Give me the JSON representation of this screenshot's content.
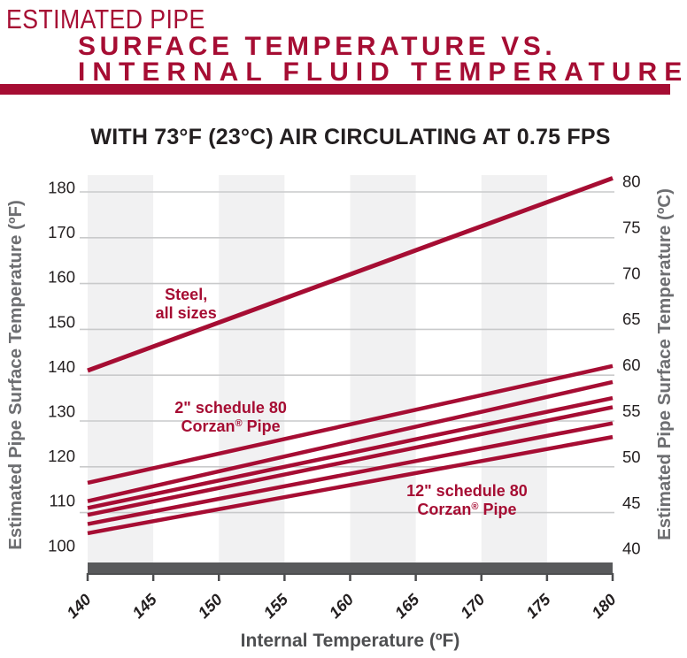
{
  "title": {
    "line1": "ESTIMATED PIPE",
    "line2": "SURFACE TEMPERATURE VS.",
    "line3": "INTERNAL FLUID TEMPERATURE"
  },
  "subtitle": "WITH 73°F (23°C) AIR CIRCULATING AT 0.75 FPS",
  "colors": {
    "crimson": "#A60D33",
    "dark_bar": "#58595B",
    "stripe": "#F1F1F2",
    "gridline": "#C9CACB",
    "text_dark": "#231F20",
    "tick_text": "#231F20",
    "axis_title_gray": "#6D6E71",
    "x_title_gray": "#4E4F51",
    "tick_mark": "#4D4E50"
  },
  "chart_data": {
    "type": "line",
    "title": "WITH 73°F (23°C) AIR CIRCULATING AT 0.75 FPS",
    "xlabel": "Internal Temperature (ºF)",
    "ylabel_left": "Estimated Pipe Surface Temperature (ºF)",
    "ylabel_right": "Estimated Pipe Surface Temperature (ºC)",
    "x_range": [
      140,
      180
    ],
    "y_range_left_f": [
      100,
      180
    ],
    "y_range_right_c": [
      40,
      80
    ],
    "x_ticks": [
      140,
      145,
      150,
      155,
      160,
      165,
      170,
      175,
      180
    ],
    "y_ticks_left_f": [
      180,
      170,
      160,
      150,
      140,
      130,
      120,
      110,
      100
    ],
    "y_ticks_right_c": [
      80,
      75,
      70,
      65,
      60,
      55,
      50,
      45,
      40
    ],
    "grid": "horizontal-only",
    "legend": "none",
    "background_stripes_x_f": [
      [
        140,
        145
      ],
      [
        150,
        155
      ],
      [
        160,
        165
      ],
      [
        170,
        175
      ]
    ],
    "series": [
      {
        "id": "steel",
        "label": "Steel, all sizes",
        "x": [
          140,
          180
        ],
        "surface_temp_f": [
          141.0,
          183.0
        ]
      },
      {
        "id": "corzan-2in-sch80",
        "label": "2\" schedule 80 Corzan® Pipe",
        "x": [
          140,
          180
        ],
        "surface_temp_f": [
          116.5,
          142.0
        ]
      },
      {
        "id": "corzan-unlabeled-1",
        "label": null,
        "x": [
          140,
          180
        ],
        "surface_temp_f": [
          112.5,
          138.5
        ]
      },
      {
        "id": "corzan-unlabeled-2",
        "label": null,
        "x": [
          140,
          180
        ],
        "surface_temp_f": [
          111.0,
          135.0
        ]
      },
      {
        "id": "corzan-unlabeled-3",
        "label": null,
        "x": [
          140,
          180
        ],
        "surface_temp_f": [
          109.5,
          133.0
        ]
      },
      {
        "id": "corzan-unlabeled-4",
        "label": null,
        "x": [
          140,
          180
        ],
        "surface_temp_f": [
          107.5,
          129.5
        ]
      },
      {
        "id": "corzan-12in-sch80",
        "label": "12\" schedule 80 Corzan® Pipe",
        "x": [
          140,
          180
        ],
        "surface_temp_f": [
          105.5,
          126.5
        ]
      }
    ],
    "annotations": [
      {
        "series": "steel",
        "lines": [
          "Steel,",
          "all sizes"
        ],
        "x_f": 147.5,
        "y_f": 155.7
      },
      {
        "series": "corzan-2in-sch80",
        "lines": [
          "2\" schedule 80",
          "Corzan® Pipe"
        ],
        "x_f": 150.9,
        "y_f": 131.0
      },
      {
        "series": "corzan-12in-sch80",
        "lines": [
          "12\" schedule 80",
          "Corzan® Pipe"
        ],
        "x_f": 168.9,
        "y_f": 112.8
      }
    ]
  }
}
